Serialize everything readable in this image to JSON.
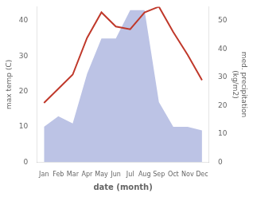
{
  "chart_data": {
    "type": "line",
    "categories": [
      "Jan",
      "Feb",
      "Mar",
      "Apr",
      "May",
      "Jun",
      "Jul",
      "Aug",
      "Sep",
      "Oct",
      "Nov",
      "Dec"
    ],
    "xlabel": "date (month)",
    "ylabel": "max temp (C)",
    "y2label": "med. precipitation\n(kg/m2)",
    "series": [
      {
        "type": "area",
        "color": "#b0b8e0",
        "values": [
          10,
          13,
          11,
          25,
          35,
          35,
          43,
          43,
          17,
          10,
          10,
          9
        ]
      },
      {
        "type": "line",
        "color": "#c0392b",
        "axis": "y2",
        "values": [
          21,
          26,
          31,
          44,
          53,
          48,
          47,
          53,
          55,
          46,
          38,
          29
        ]
      }
    ],
    "ylim": [
      0,
      44
    ],
    "yticks": [
      0,
      10,
      20,
      30,
      40
    ],
    "y2lim": [
      0,
      55
    ],
    "y2ticks": [
      0,
      10,
      20,
      30,
      40,
      50
    ],
    "grid": false
  }
}
